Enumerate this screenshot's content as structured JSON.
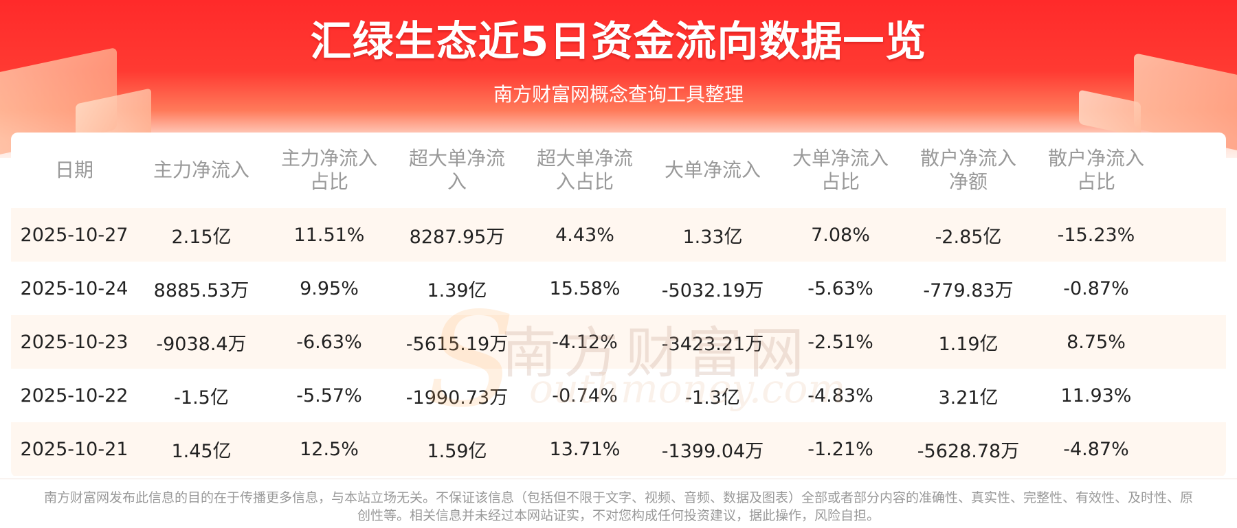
{
  "header": {
    "title": "汇绿生态近5日资金流向数据一览",
    "subtitle": "南方财富网概念查询工具整理"
  },
  "table": {
    "columns": [
      "日期",
      "主力净流入",
      "主力净流入占比",
      "超大单净流入",
      "超大单净流入占比",
      "大单净流入",
      "大单净流入占比",
      "散户净流入净额",
      "散户净流入占比"
    ],
    "rows": [
      [
        "2025-10-27",
        "2.15亿",
        "11.51%",
        "8287.95万",
        "4.43%",
        "1.33亿",
        "7.08%",
        "-2.85亿",
        "-15.23%"
      ],
      [
        "2025-10-24",
        "8885.53万",
        "9.95%",
        "1.39亿",
        "15.58%",
        "-5032.19万",
        "-5.63%",
        "-779.83万",
        "-0.87%"
      ],
      [
        "2025-10-23",
        "-9038.4万",
        "-6.63%",
        "-5615.19万",
        "-4.12%",
        "-3423.21万",
        "-2.51%",
        "1.19亿",
        "8.75%"
      ],
      [
        "2025-10-22",
        "-1.5亿",
        "-5.57%",
        "-1990.73万",
        "-0.74%",
        "-1.3亿",
        "-4.83%",
        "3.21亿",
        "11.93%"
      ],
      [
        "2025-10-21",
        "1.45亿",
        "12.5%",
        "1.59亿",
        "13.71%",
        "-1399.04万",
        "-1.21%",
        "-5628.78万",
        "-4.87%"
      ]
    ]
  },
  "watermark": {
    "cn": "南方财富网",
    "en": "outhmoney.com",
    "initial": "S"
  },
  "footer": {
    "disclaimer": "南方财富网发布此信息的目的在于传播更多信息，与本站立场无关。不保证该信息（包括但不限于文字、视频、音频、数据及图表）全部或者部分内容的准确性、真实性、完整性、有效性、及时性、原创性等。相关信息并未经过本网站证实，不对您构成任何投资建议，据此操作，风险自担。"
  },
  "colors": {
    "banner_red": "#ff2a2a",
    "alt_row": "#fff7f0",
    "header_text": "#999999",
    "cell_text": "#222222"
  }
}
